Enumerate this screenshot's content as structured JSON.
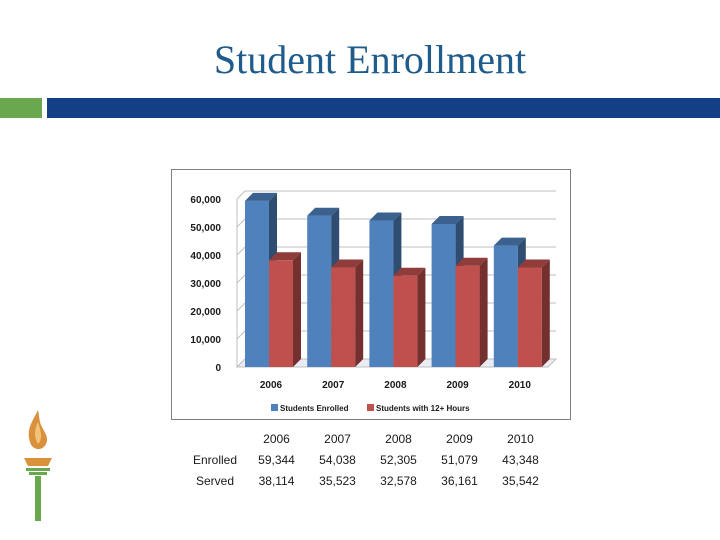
{
  "title": "Student Enrollment",
  "colors": {
    "title": "#1f5c8c",
    "accent_green": "#6aa84f",
    "accent_blue": "#123f86",
    "enrolled": "#4f81bd",
    "served": "#c0504d"
  },
  "chart_data": {
    "type": "bar",
    "style": "3d-clustered-column",
    "title": "",
    "xlabel": "",
    "ylabel": "",
    "categories": [
      "2006",
      "2007",
      "2008",
      "2009",
      "2010"
    ],
    "series": [
      {
        "name": "Students Enrolled",
        "values": [
          59344,
          54038,
          52305,
          51079,
          43348
        ]
      },
      {
        "name": "Students with 12+ Hours",
        "values": [
          38114,
          35523,
          32578,
          36161,
          35542
        ]
      }
    ],
    "yticks": [
      "0",
      "10,000",
      "20,000",
      "30,000",
      "40,000",
      "50,000",
      "60,000"
    ],
    "ylim": [
      0,
      60000
    ],
    "grid": true,
    "legend": "bottom"
  },
  "table": {
    "columns": [
      "",
      "2006",
      "2007",
      "2008",
      "2009",
      "2010"
    ],
    "rows": [
      {
        "label": "Enrolled",
        "values": [
          "59,344",
          "54,038",
          "52,305",
          "51,079",
          "43,348"
        ]
      },
      {
        "label": "Served",
        "values": [
          "38,114",
          "35,523",
          "32,578",
          "36,161",
          "35,542"
        ]
      }
    ]
  },
  "logo": {
    "icon": "torch-icon"
  }
}
